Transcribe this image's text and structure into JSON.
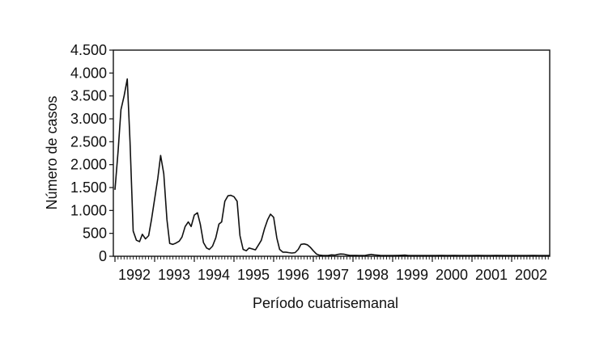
{
  "chart_data": {
    "type": "line",
    "xlabel": "Período cuatrisemanal",
    "ylabel": "Número de casos",
    "ylim": [
      0,
      4500
    ],
    "xlim": [
      1992,
      2002.95
    ],
    "y_ticks": [
      {
        "value": 0,
        "label": "0"
      },
      {
        "value": 500,
        "label": "500"
      },
      {
        "value": 1000,
        "label": "1.000"
      },
      {
        "value": 1500,
        "label": "1.500"
      },
      {
        "value": 2000,
        "label": "2.000"
      },
      {
        "value": 2500,
        "label": "2.500"
      },
      {
        "value": 3000,
        "label": "3.000"
      },
      {
        "value": 3500,
        "label": "3.500"
      },
      {
        "value": 4000,
        "label": "4.000"
      },
      {
        "value": 4500,
        "label": "4.500"
      }
    ],
    "x_ticks": [
      {
        "value": 1992,
        "label": "1992"
      },
      {
        "value": 1993,
        "label": "1993"
      },
      {
        "value": 1994,
        "label": "1994"
      },
      {
        "value": 1995,
        "label": "1995"
      },
      {
        "value": 1996,
        "label": "1996"
      },
      {
        "value": 1997,
        "label": "1997"
      },
      {
        "value": 1998,
        "label": "1998"
      },
      {
        "value": 1999,
        "label": "1999"
      },
      {
        "value": 2000,
        "label": "2000"
      },
      {
        "value": 2001,
        "label": "2001"
      },
      {
        "value": 2002,
        "label": "2002"
      }
    ],
    "grid": false,
    "legend": "none",
    "line_color": "#111111",
    "series": [
      {
        "x": [
          1992.0,
          1992.08,
          1992.15,
          1992.23,
          1992.31,
          1992.38,
          1992.46,
          1992.54,
          1992.62,
          1992.69,
          1992.77,
          1992.85,
          1992.92,
          1993.0,
          1993.08,
          1993.15,
          1993.23,
          1993.31,
          1993.38,
          1993.46,
          1993.54,
          1993.62,
          1993.69,
          1993.77,
          1993.85,
          1993.92,
          1994.0,
          1994.08,
          1994.15,
          1994.23,
          1994.31,
          1994.38,
          1994.46,
          1994.54,
          1994.62,
          1994.69,
          1994.77,
          1994.85,
          1994.92,
          1995.0,
          1995.08,
          1995.15,
          1995.23,
          1995.31,
          1995.38,
          1995.46,
          1995.54,
          1995.62,
          1995.69,
          1995.77,
          1995.85,
          1995.92,
          1996.0,
          1996.08,
          1996.15,
          1996.23,
          1996.31,
          1996.38,
          1996.46,
          1996.54,
          1996.62,
          1996.69,
          1996.77,
          1996.85,
          1996.92,
          1997.0,
          1997.08,
          1997.15,
          1997.23,
          1997.31,
          1997.38,
          1997.46,
          1997.54,
          1997.62,
          1997.69,
          1997.77,
          1997.85,
          1997.92,
          1998.0,
          1998.08,
          1998.15,
          1998.23,
          1998.31,
          1998.38,
          1998.46,
          1998.54,
          1998.69,
          1998.85,
          1999.0,
          1999.15,
          1999.31,
          1999.38,
          1999.46,
          1999.62,
          1999.77,
          1999.92,
          2000.08,
          2000.23,
          2000.38,
          2000.54,
          2000.69,
          2000.85,
          2001.0,
          2001.15,
          2001.31,
          2001.46,
          2001.62,
          2001.77,
          2001.92,
          2002.08,
          2002.23,
          2002.38,
          2002.54,
          2002.69,
          2002.85,
          2002.95
        ],
        "values": [
          1450,
          2300,
          3200,
          3500,
          3870,
          2500,
          550,
          350,
          320,
          480,
          380,
          450,
          800,
          1250,
          1700,
          2200,
          1800,
          800,
          280,
          260,
          290,
          330,
          420,
          650,
          750,
          650,
          900,
          950,
          700,
          300,
          180,
          150,
          220,
          400,
          700,
          750,
          1200,
          1320,
          1330,
          1300,
          1200,
          450,
          150,
          120,
          180,
          160,
          140,
          250,
          350,
          600,
          800,
          920,
          850,
          400,
          150,
          90,
          90,
          80,
          70,
          80,
          150,
          260,
          270,
          250,
          200,
          120,
          50,
          25,
          20,
          15,
          20,
          30,
          25,
          40,
          50,
          45,
          30,
          20,
          20,
          20,
          15,
          15,
          20,
          30,
          40,
          30,
          20,
          15,
          15,
          20,
          25,
          20,
          15,
          15,
          15,
          15,
          15,
          20,
          15,
          20,
          15,
          15,
          15,
          20,
          15,
          15,
          20,
          15,
          15,
          15,
          15,
          15,
          20,
          15,
          15,
          15
        ]
      }
    ]
  }
}
